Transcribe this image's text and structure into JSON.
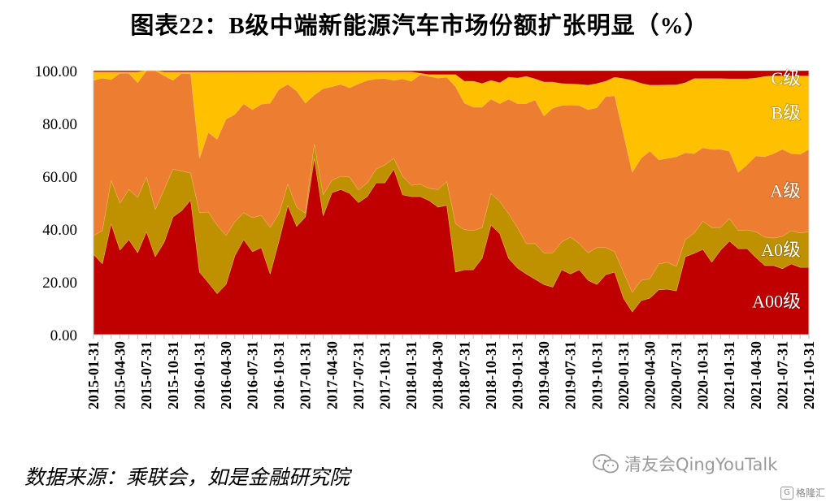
{
  "title": "图表22：B级中端新能源汽车市场份额扩张明显（%）",
  "source": "数据来源：乘联会，如是金融研究院",
  "watermark": "清友会QingYouTalk",
  "logo_text": "格隆汇",
  "chart_data": {
    "type": "area",
    "stacked": true,
    "ylim": [
      0,
      100
    ],
    "y_ticks": [
      "0.00",
      "20.00",
      "40.00",
      "60.00",
      "80.00",
      "100.00"
    ],
    "grid": false,
    "legend": "inline-right",
    "x": [
      "2015-01-31",
      "2015-02-28",
      "2015-03-31",
      "2015-04-30",
      "2015-05-31",
      "2015-06-30",
      "2015-07-31",
      "2015-08-31",
      "2015-09-30",
      "2015-10-31",
      "2015-11-30",
      "2015-12-31",
      "2016-01-31",
      "2016-02-29",
      "2016-03-31",
      "2016-04-30",
      "2016-05-31",
      "2016-06-30",
      "2016-07-31",
      "2016-08-31",
      "2016-09-30",
      "2016-10-31",
      "2016-11-30",
      "2016-12-31",
      "2017-01-31",
      "2017-02-28",
      "2017-03-31",
      "2017-04-30",
      "2017-05-31",
      "2017-06-30",
      "2017-07-31",
      "2017-08-31",
      "2017-09-30",
      "2017-10-31",
      "2017-11-30",
      "2017-12-31",
      "2018-01-31",
      "2018-02-28",
      "2018-03-31",
      "2018-04-30",
      "2018-05-31",
      "2018-06-30",
      "2018-07-31",
      "2018-08-31",
      "2018-09-30",
      "2018-10-31",
      "2018-11-30",
      "2018-12-31",
      "2019-01-31",
      "2019-02-28",
      "2019-03-31",
      "2019-04-30",
      "2019-05-31",
      "2019-06-30",
      "2019-07-31",
      "2019-08-31",
      "2019-09-30",
      "2019-10-31",
      "2019-11-30",
      "2019-12-31",
      "2020-01-31",
      "2020-02-29",
      "2020-03-31",
      "2020-04-30",
      "2020-05-31",
      "2020-06-30",
      "2020-07-31",
      "2020-08-31",
      "2020-09-30",
      "2020-10-31",
      "2020-11-30",
      "2020-12-31",
      "2021-01-31",
      "2021-02-28",
      "2021-03-31",
      "2021-04-30",
      "2021-05-31",
      "2021-06-30",
      "2021-07-31",
      "2021-08-31",
      "2021-09-30",
      "2021-10-31"
    ],
    "x_tick_labels": [
      "2015-01-31",
      "2015-04-30",
      "2015-07-31",
      "2015-10-31",
      "2016-01-31",
      "2016-04-30",
      "2016-07-31",
      "2016-10-31",
      "2017-01-31",
      "2017-04-30",
      "2017-07-31",
      "2017-10-31",
      "2018-01-31",
      "2018-04-30",
      "2018-07-31",
      "2018-10-31",
      "2019-01-31",
      "2019-04-30",
      "2019-07-31",
      "2019-10-31",
      "2020-01-31",
      "2020-04-30",
      "2020-07-31",
      "2020-10-31",
      "2021-01-31",
      "2021-04-30",
      "2021-07-31",
      "2021-10-31"
    ],
    "series": [
      {
        "name": "A00级",
        "color": "#C00000",
        "values": [
          30.4,
          26.8,
          42,
          32,
          36,
          31,
          39,
          29.5,
          35,
          44.6,
          47,
          51,
          23.7,
          19.7,
          15.5,
          19,
          29.8,
          36,
          31.4,
          33,
          23,
          35.4,
          48.9,
          41,
          44.6,
          66.8,
          45,
          53.8,
          55,
          53.5,
          50,
          52.3,
          57.5,
          57.5,
          62.7,
          53,
          52.3,
          52.3,
          50.8,
          48.3,
          49,
          23.7,
          24.6,
          24.6,
          28.9,
          41.5,
          38.2,
          28.9,
          25.2,
          23,
          21,
          19,
          18,
          24.6,
          23,
          24.6,
          20.6,
          19,
          22.7,
          23.7,
          13.8,
          8.6,
          12.9,
          13.8,
          17,
          17.2,
          16.6,
          29.5,
          30.8,
          32.3,
          27.4,
          32,
          35.4,
          32.6,
          32.6,
          29.2,
          26.2,
          26.2,
          25,
          26.8,
          25.5,
          25.5
        ]
      },
      {
        "name": "A0级",
        "color": "#BF9000",
        "values": [
          7.1,
          12.6,
          16.5,
          17.8,
          19,
          21,
          20.7,
          17.9,
          20,
          18.1,
          15,
          10.2,
          22.5,
          26.8,
          26,
          18.5,
          13,
          10.2,
          12.9,
          12.2,
          17.6,
          10.4,
          8.1,
          7.3,
          1.4,
          5.5,
          8,
          4.7,
          5,
          6.2,
          4.8,
          5.2,
          5.2,
          6.8,
          4.1,
          7,
          4.3,
          4.7,
          4.6,
          6.7,
          9,
          18.3,
          15.2,
          14.8,
          11.7,
          12,
          12.2,
          16.9,
          15.4,
          11.5,
          13.5,
          12,
          13,
          10.5,
          14,
          9.9,
          10.4,
          14,
          10.3,
          7.7,
          9.9,
          7.4,
          7.7,
          7.4,
          9.8,
          10.2,
          9.2,
          6.5,
          7.7,
          10.7,
          13.2,
          8.6,
          8.6,
          6.8,
          7.1,
          9.8,
          10.8,
          10.4,
          12.2,
          12.6,
          13,
          13.5
        ]
      },
      {
        "name": "A级",
        "color": "#ED7D31",
        "values": [
          58.8,
          57.8,
          38.1,
          49.2,
          44,
          43.4,
          40.3,
          52.6,
          43.1,
          33.6,
          37,
          37.6,
          20.6,
          30.1,
          32.5,
          44.1,
          40.6,
          41.2,
          40.9,
          42.1,
          47.1,
          47.1,
          37.8,
          44,
          41.7,
          18.5,
          40.2,
          35.4,
          34.8,
          33.8,
          40.2,
          38.8,
          34.2,
          32.7,
          29.5,
          36.9,
          39.4,
          41.5,
          42.4,
          42.2,
          39.5,
          51.9,
          47.9,
          46.8,
          45.6,
          35.7,
          37.1,
          43.4,
          46.9,
          53,
          54.4,
          51.8,
          54.8,
          51.7,
          50,
          52.3,
          54.2,
          53,
          57.2,
          59.1,
          52.3,
          45.5,
          46.2,
          48.3,
          39.4,
          39.4,
          41.6,
          32.9,
          30.1,
          27.8,
          29.6,
          29.6,
          25.5,
          22.1,
          24.6,
          28.7,
          30.4,
          32,
          33,
          29.2,
          29.8,
          31.2
        ]
      },
      {
        "name": "B级",
        "color": "#FFC000",
        "values": [
          3.2,
          2.3,
          2.9,
          0.5,
          0.5,
          4.1,
          0,
          0,
          1.4,
          3.2,
          0.5,
          0.7,
          32.7,
          22.9,
          25.5,
          17.9,
          16.1,
          12.1,
          14.3,
          12.2,
          11.8,
          6.6,
          4.7,
          7.2,
          11.8,
          8.7,
          6.3,
          5.6,
          4.7,
          6,
          4.5,
          3.2,
          2.6,
          2.5,
          3.2,
          2.6,
          3.5,
          0.5,
          0.7,
          1.3,
          1,
          4.6,
          8.3,
          9.8,
          8.9,
          7.1,
          7.9,
          8.3,
          9.7,
          10.3,
          8,
          12.9,
          9.9,
          8.3,
          8,
          8,
          9.3,
          9.1,
          5.8,
          7,
          21,
          34.8,
          28.4,
          25,
          28.3,
          27.8,
          27.2,
          26.5,
          28.4,
          26.2,
          26.8,
          26.8,
          27.4,
          35.4,
          32.6,
          29.5,
          30.4,
          29.4,
          27.8,
          29.4,
          29.7,
          27.8
        ]
      },
      {
        "name": "C级",
        "color": "#C00000",
        "values": [
          0.5,
          0.5,
          0.5,
          0.5,
          0.5,
          0.5,
          0,
          0,
          0.5,
          0.5,
          0.5,
          0.5,
          0.5,
          0.5,
          0.5,
          0.5,
          0.5,
          0.5,
          0.5,
          0.5,
          0.5,
          0.5,
          0.5,
          0.5,
          0.5,
          0.5,
          0.5,
          0.5,
          0.5,
          0.5,
          0.5,
          0.5,
          0.5,
          0.5,
          0.5,
          0.5,
          0.5,
          1,
          1.5,
          1.5,
          1.5,
          1.5,
          4,
          4,
          4.9,
          3.7,
          4.6,
          2.5,
          2.8,
          2.2,
          3.1,
          4.3,
          4.3,
          4.9,
          5,
          5.2,
          5.5,
          4.9,
          4,
          2.5,
          3,
          3.7,
          4.8,
          5.5,
          5.5,
          5.4,
          5.4,
          4.6,
          3,
          3,
          3,
          3,
          3.1,
          3.1,
          3.1,
          2.8,
          2.2,
          2,
          2,
          2,
          2,
          2
        ]
      }
    ]
  }
}
